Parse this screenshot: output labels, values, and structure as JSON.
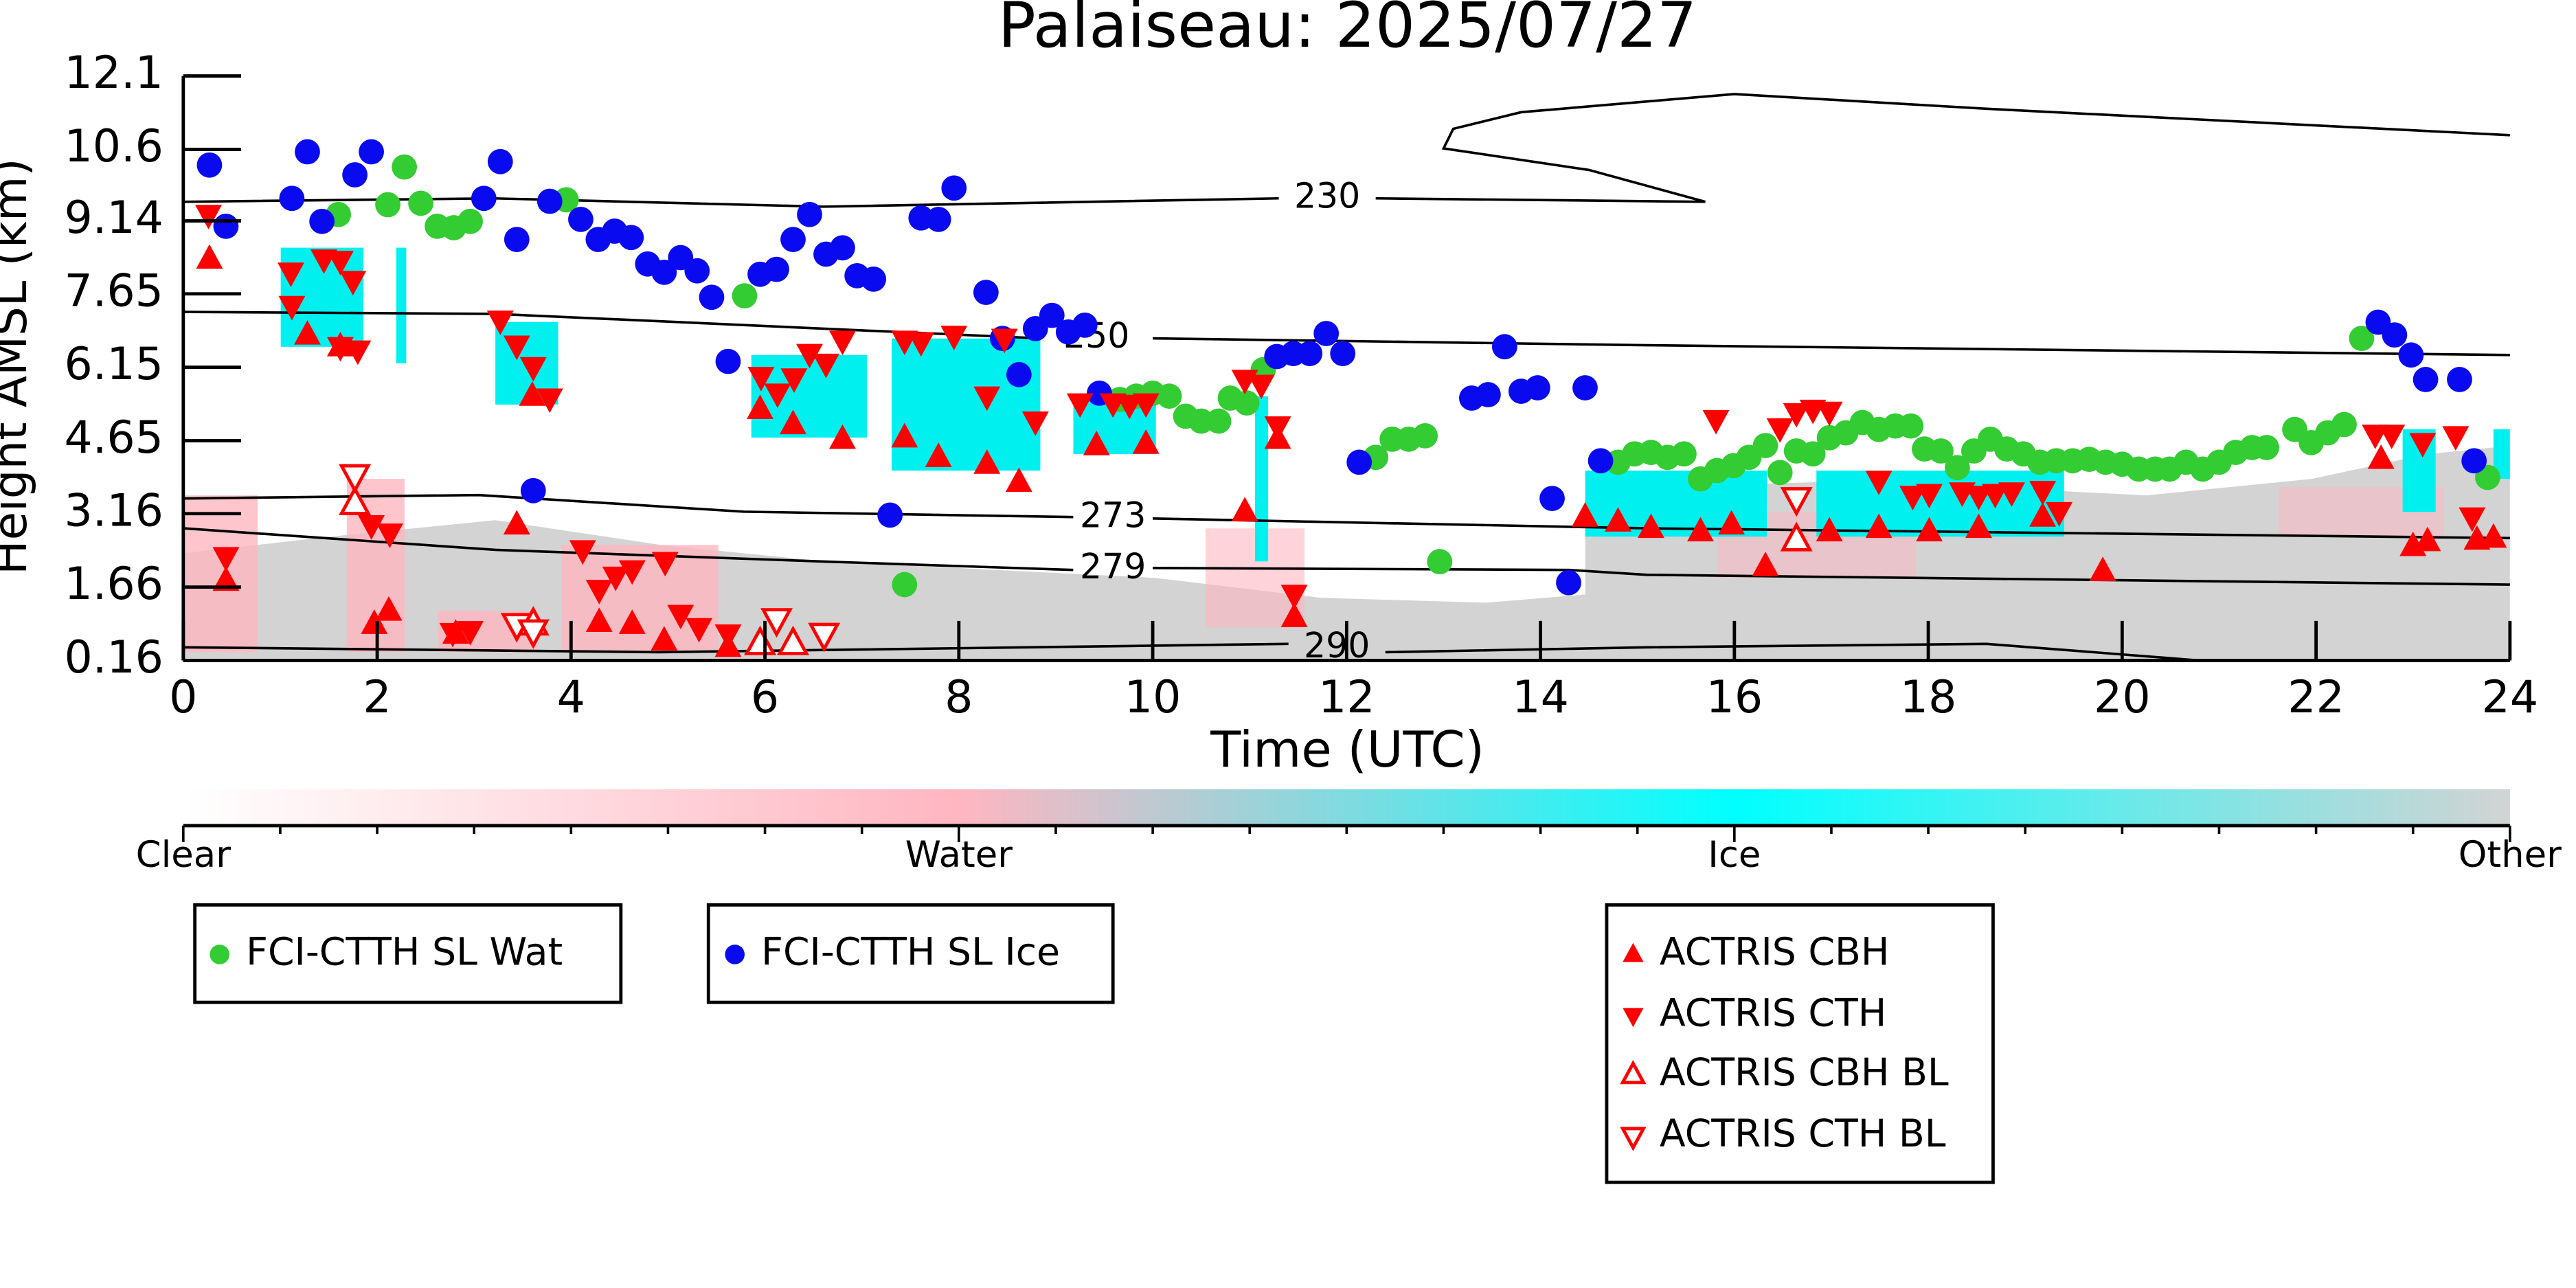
{
  "chart_data": {
    "type": "scatter",
    "title": "Palaiseau: 2025/07/27",
    "xlabel": "Time (UTC)",
    "ylabel": "Height AMSL (km)",
    "xlim": [
      0,
      24
    ],
    "xticks": [
      0,
      2,
      4,
      6,
      8,
      10,
      12,
      14,
      16,
      18,
      20,
      22,
      24
    ],
    "ylim": [
      0.16,
      12.1
    ],
    "yticks": [
      0.16,
      1.66,
      3.16,
      4.65,
      6.15,
      7.65,
      9.14,
      10.6,
      12.1
    ],
    "series": [
      {
        "name": "FCI-CTTH SL Wat",
        "color": "#33cc33",
        "marker": "circle",
        "filled": true,
        "x": [
          1.6,
          2.11,
          2.28,
          2.45,
          2.62,
          2.79,
          2.96,
          3.95,
          5.79,
          7.44,
          9.66,
          9.83,
          10.0,
          10.17,
          10.34,
          10.5,
          10.68,
          10.8,
          10.97,
          11.14,
          12.3,
          12.47,
          12.64,
          12.81,
          12.96,
          14.8,
          14.97,
          15.14,
          15.31,
          15.48,
          15.65,
          15.82,
          15.99,
          16.15,
          16.32,
          16.47,
          16.64,
          16.81,
          16.98,
          17.15,
          17.32,
          17.49,
          17.66,
          17.82,
          17.96,
          18.13,
          18.3,
          18.47,
          18.64,
          18.81,
          18.98,
          19.15,
          19.32,
          19.49,
          19.66,
          19.83,
          20.0,
          20.17,
          20.34,
          20.49,
          20.66,
          20.83,
          21.0,
          21.17,
          21.34,
          21.49,
          21.78,
          21.95,
          22.12,
          22.29,
          22.47,
          23.77
        ],
        "values": [
          9.27,
          9.47,
          10.24,
          9.5,
          9.03,
          9.0,
          9.13,
          9.57,
          7.61,
          1.71,
          5.49,
          5.56,
          5.62,
          5.56,
          5.15,
          5.05,
          5.05,
          5.52,
          5.42,
          6.1,
          4.31,
          4.68,
          4.68,
          4.75,
          2.18,
          4.21,
          4.38,
          4.41,
          4.31,
          4.38,
          3.87,
          4.04,
          4.14,
          4.31,
          4.55,
          4.0,
          4.44,
          4.38,
          4.71,
          4.81,
          5.02,
          4.88,
          4.95,
          4.95,
          4.48,
          4.44,
          4.1,
          4.44,
          4.68,
          4.48,
          4.38,
          4.21,
          4.24,
          4.24,
          4.27,
          4.21,
          4.17,
          4.07,
          4.07,
          4.07,
          4.21,
          4.07,
          4.21,
          4.41,
          4.51,
          4.51,
          4.88,
          4.61,
          4.81,
          4.98,
          6.74,
          3.9
        ]
      },
      {
        "name": "FCI-CTTH SL Ice",
        "color": "#0a0af0",
        "marker": "circle",
        "filled": true,
        "x": [
          0.27,
          0.44,
          1.12,
          1.28,
          1.43,
          1.77,
          1.94,
          3.1,
          3.27,
          3.44,
          3.61,
          3.78,
          4.1,
          4.28,
          4.45,
          4.62,
          4.79,
          4.96,
          5.13,
          5.3,
          5.45,
          5.62,
          5.95,
          6.12,
          6.29,
          6.46,
          6.63,
          6.8,
          6.95,
          7.12,
          7.29,
          7.61,
          7.79,
          7.95,
          8.28,
          8.45,
          8.62,
          8.79,
          8.96,
          9.13,
          9.3,
          9.45,
          11.28,
          11.45,
          11.62,
          11.79,
          11.96,
          12.13,
          13.29,
          13.46,
          13.63,
          13.8,
          13.97,
          14.12,
          14.29,
          14.46,
          14.62,
          22.64,
          22.81,
          22.98,
          23.13,
          23.48,
          23.63
        ],
        "values": [
          10.28,
          9.03,
          9.6,
          10.55,
          9.13,
          10.08,
          10.55,
          9.6,
          10.35,
          8.76,
          3.63,
          9.54,
          9.17,
          8.76,
          8.93,
          8.8,
          8.26,
          8.09,
          8.39,
          8.12,
          7.58,
          6.27,
          8.05,
          8.15,
          8.76,
          9.27,
          8.46,
          8.59,
          8.02,
          7.95,
          3.13,
          9.2,
          9.17,
          9.81,
          7.68,
          6.74,
          6.0,
          6.94,
          7.21,
          6.87,
          7.01,
          5.62,
          6.37,
          6.43,
          6.43,
          6.84,
          6.43,
          4.21,
          5.52,
          5.59,
          6.57,
          5.66,
          5.73,
          3.47,
          1.75,
          5.73,
          4.24,
          7.07,
          6.81,
          6.4,
          5.9,
          5.9,
          4.24
        ]
      },
      {
        "name": "ACTRIS CBH",
        "color": "#ff0000",
        "marker": "triangle-up",
        "filled": true,
        "x": [
          0.27,
          0.44,
          1.28,
          1.62,
          1.97,
          2.12,
          2.81,
          3.6,
          3.44,
          4.29,
          4.63,
          4.96,
          5.62,
          5.95,
          6.29,
          6.8,
          7.44,
          7.79,
          8.29,
          8.62,
          9.42,
          9.93,
          10.95,
          11.29,
          11.46,
          14.46,
          14.8,
          15.14,
          15.65,
          15.97,
          16.32,
          16.64,
          16.98,
          17.49,
          18.01,
          18.52,
          19.18,
          19.8,
          22.67,
          23.0,
          23.15,
          23.66,
          23.83
        ],
        "values": [
          8.36,
          1.78,
          6.81,
          6.57,
          0.9,
          1.17,
          0.7,
          5.56,
          2.93,
          0.94,
          0.9,
          0.56,
          0.43,
          5.29,
          4.98,
          4.68,
          4.71,
          4.31,
          4.17,
          3.8,
          4.55,
          4.58,
          3.2,
          4.68,
          1.04,
          3.09,
          2.99,
          2.86,
          2.79,
          2.93,
          2.08,
          2.69,
          2.79,
          2.86,
          2.79,
          2.86,
          3.09,
          1.98,
          4.27,
          2.49,
          2.59,
          2.62,
          2.66
        ]
      },
      {
        "name": "ACTRIS CTH",
        "color": "#ff0000",
        "marker": "triangle-down",
        "filled": true,
        "x": [
          0.26,
          0.44,
          1.11,
          1.12,
          1.45,
          1.62,
          1.75,
          1.62,
          1.8,
          3.27,
          3.44,
          3.61,
          3.78,
          1.94,
          2.13,
          2.78,
          2.96,
          4.12,
          4.29,
          4.46,
          4.63,
          4.97,
          5.13,
          5.32,
          5.62,
          5.96,
          6.13,
          6.3,
          6.46,
          6.63,
          6.8,
          7.44,
          7.61,
          7.95,
          8.29,
          8.47,
          8.79,
          9.25,
          9.59,
          9.76,
          9.93,
          10.95,
          11.12,
          11.29,
          11.46,
          15.81,
          16.47,
          16.64,
          16.81,
          16.98,
          17.49,
          17.84,
          18.01,
          18.35,
          18.52,
          18.69,
          18.86,
          19.18,
          19.35,
          22.61,
          22.78,
          23.1,
          23.44,
          23.61
        ],
        "values": [
          9.27,
          2.28,
          8.09,
          7.41,
          8.36,
          8.33,
          7.92,
          6.57,
          6.5,
          7.11,
          6.6,
          6.16,
          5.52,
          2.93,
          2.76,
          0.73,
          0.77,
          2.42,
          1.61,
          1.88,
          2.01,
          2.18,
          1.1,
          0.83,
          0.7,
          5.96,
          5.62,
          5.93,
          6.43,
          6.23,
          6.7,
          6.7,
          6.67,
          6.8,
          5.56,
          6.74,
          5.05,
          5.42,
          5.42,
          5.39,
          5.42,
          5.9,
          5.8,
          4.95,
          1.51,
          5.08,
          4.91,
          5.22,
          5.29,
          5.25,
          3.84,
          3.53,
          3.57,
          3.6,
          3.53,
          3.57,
          3.6,
          3.63,
          3.2,
          4.78,
          4.78,
          4.61,
          4.75,
          3.09
        ]
      },
      {
        "name": "ACTRIS CBH BL",
        "color": "#ff0000",
        "marker": "triangle-up",
        "filled": false,
        "x": [
          1.77,
          3.61,
          5.95,
          6.29,
          16.64
        ],
        "values": [
          3.36,
          0.9,
          0.5,
          0.5,
          2.62
        ]
      },
      {
        "name": "ACTRIS CTH BL",
        "color": "#ff0000",
        "marker": "triangle-down",
        "filled": false,
        "x": [
          1.77,
          3.44,
          3.61,
          6.12,
          6.61,
          16.64
        ],
        "values": [
          3.94,
          0.9,
          0.77,
          1.0,
          0.7,
          3.47
        ]
      }
    ],
    "contours": [
      {
        "label": "230",
        "x": [
          0,
          3.2,
          6.6,
          11.3,
          null,
          12.3,
          15.7,
          14.5,
          13.0,
          13.1,
          13.8,
          16.0,
          18.6,
          24
        ],
        "y": [
          9.53,
          9.6,
          9.43,
          9.6,
          null,
          9.6,
          9.53,
          10.18,
          10.62,
          11.02,
          11.36,
          11.73,
          11.43,
          10.89
        ]
      },
      {
        "label": "250",
        "x": [
          0,
          3.22,
          8.84,
          null,
          10.0,
          15.1,
          24
        ],
        "y": [
          7.28,
          7.24,
          6.74,
          null,
          6.74,
          6.6,
          6.4
        ]
      },
      {
        "label": "273",
        "x": [
          0,
          3.05,
          5.78,
          9.18,
          null,
          10.0,
          15.1,
          24
        ],
        "y": [
          3.47,
          3.54,
          3.2,
          3.09,
          null,
          3.06,
          2.86,
          2.66
        ]
      },
      {
        "label": "279",
        "x": [
          0,
          3.22,
          6.63,
          9.18,
          null,
          10.0,
          14.3,
          15.1,
          24
        ],
        "y": [
          2.86,
          2.42,
          2.18,
          2.01,
          null,
          2.05,
          2.01,
          1.91,
          1.71
        ]
      },
      {
        "label": "290",
        "x": [
          0,
          4.9,
          11.4,
          null,
          12.4,
          15.1,
          18.6,
          20.8
        ],
        "y": [
          0.43,
          0.33,
          0.5,
          null,
          0.33,
          0.43,
          0.5,
          0.16
        ]
      }
    ],
    "colorbar": {
      "labels": [
        "Clear",
        "Water",
        "Ice",
        "Other"
      ],
      "colors": [
        "#ffffff",
        "#ffb6c1",
        "#00ffff",
        "#d3d3d3"
      ]
    }
  }
}
